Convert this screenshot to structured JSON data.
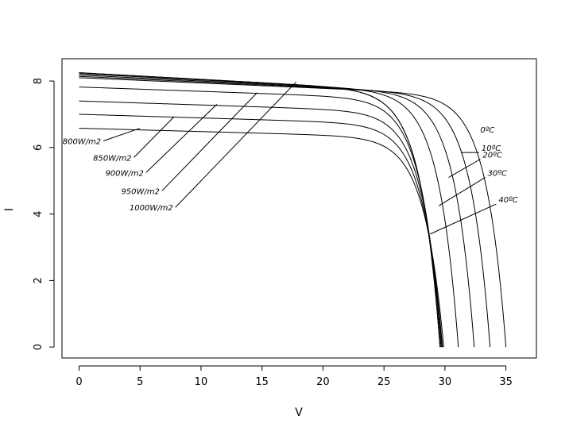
{
  "chart_data": {
    "type": "line",
    "title": "",
    "xlabel": "V",
    "ylabel": "I",
    "xlim": [
      -1.4,
      37.5
    ],
    "ylim": [
      -0.33,
      8.67
    ],
    "x_ticks": [
      "0",
      "5",
      "10",
      "15",
      "20",
      "25",
      "30",
      "35"
    ],
    "y_ticks": [
      "0",
      "2",
      "4",
      "6",
      "8"
    ],
    "grid": false,
    "legend": "none",
    "series_color": "#000000",
    "series": [
      {
        "group": "irradiance",
        "label": "800W/m2",
        "isc": 6.58,
        "voc": 29.9,
        "knee_slope": 0.01
      },
      {
        "group": "irradiance",
        "label": "850W/m2",
        "isc": 7.0,
        "voc": 29.8,
        "knee_slope": 0.011
      },
      {
        "group": "irradiance",
        "label": "900W/m2",
        "isc": 7.4,
        "voc": 29.75,
        "knee_slope": 0.012
      },
      {
        "group": "irradiance",
        "label": "950W/m2",
        "isc": 7.82,
        "voc": 29.68,
        "knee_slope": 0.013
      },
      {
        "group": "irradiance",
        "label": "1000W/m2",
        "isc": 8.25,
        "voc": 29.6,
        "knee_slope": 0.02
      },
      {
        "group": "temperature",
        "label": "0ºC",
        "isc": 8.1,
        "voc": 35.0,
        "knee_slope": 0.016
      },
      {
        "group": "temperature",
        "label": "10ºC",
        "isc": 8.14,
        "voc": 33.7,
        "knee_slope": 0.017
      },
      {
        "group": "temperature",
        "label": "20ºC",
        "isc": 8.18,
        "voc": 32.4,
        "knee_slope": 0.018
      },
      {
        "group": "temperature",
        "label": "30ºC",
        "isc": 8.22,
        "voc": 31.1,
        "knee_slope": 0.019
      },
      {
        "group": "temperature",
        "label": "40ºC",
        "isc": 8.25,
        "voc": 29.6,
        "knee_slope": 0.02
      }
    ],
    "annotations": [
      {
        "text": "800W/m2",
        "from": [
          2.0,
          6.2
        ],
        "to": [
          5.0,
          6.58
        ]
      },
      {
        "text": "850W/m2",
        "from": [
          4.5,
          5.7
        ],
        "to": [
          7.8,
          6.93
        ]
      },
      {
        "text": "900W/m2",
        "from": [
          5.5,
          5.25
        ],
        "to": [
          11.3,
          7.3
        ]
      },
      {
        "text": "950W/m2",
        "from": [
          6.8,
          4.7
        ],
        "to": [
          14.6,
          7.65
        ]
      },
      {
        "text": "1000W/m2",
        "from": [
          7.9,
          4.2
        ],
        "to": [
          17.8,
          7.97
        ]
      },
      {
        "text": "0ºC",
        "from": [
          32.7,
          6.4
        ],
        "to": [
          32.7,
          6.4
        ]
      },
      {
        "text": "10ºC",
        "from": [
          31.3,
          5.85
        ],
        "to": [
          32.8,
          5.85
        ]
      },
      {
        "text": "20ºC",
        "from": [
          30.3,
          5.1
        ],
        "to": [
          32.9,
          5.65
        ]
      },
      {
        "text": "30ºC",
        "from": [
          29.5,
          4.25
        ],
        "to": [
          33.3,
          5.1
        ]
      },
      {
        "text": "40ºC",
        "from": [
          28.8,
          3.4
        ],
        "to": [
          34.2,
          4.3
        ]
      }
    ]
  }
}
